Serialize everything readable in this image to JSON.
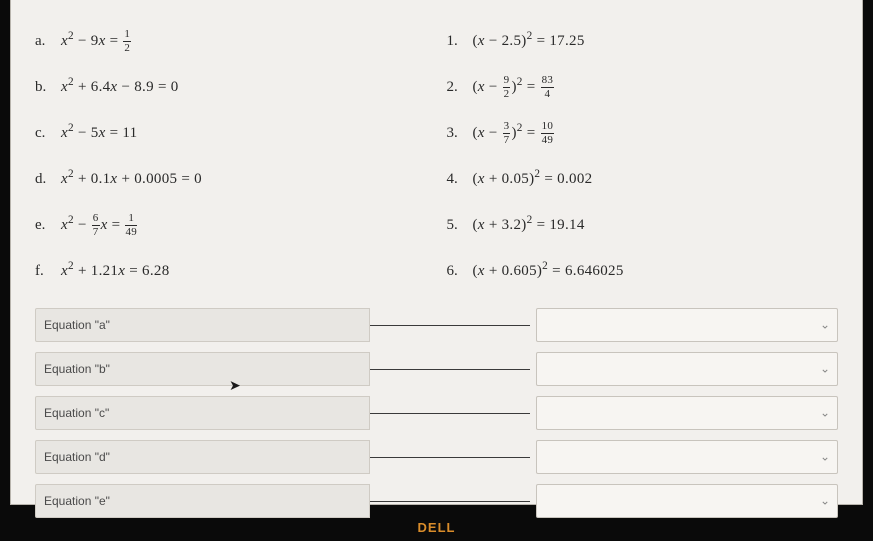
{
  "colors": {
    "page_bg": "#f2f0ed",
    "body_bg": "#0a0a0a",
    "text": "#2a2a2a",
    "label_bg": "#e8e6e2",
    "label_border": "#cfcbc4",
    "select_bg": "#f7f5f2",
    "select_border": "#c8c4bd",
    "underline": "#3a3a3a",
    "brand": "#d98c2a"
  },
  "fonts": {
    "math_family": "Georgia, Times New Roman, serif",
    "ui_family": "Arial, sans-serif",
    "math_size_pt": 11,
    "ui_size_pt": 9
  },
  "left_items": [
    {
      "label": "a.",
      "expr_html": "<i>x</i><sup>2</sup> − 9<i>x</i> = <span class='frac'><span class='n'>1</span><span class='d'>2</span></span>"
    },
    {
      "label": "b.",
      "expr_html": "<i>x</i><sup>2</sup> + 6.4<i>x</i> − 8.9 = 0"
    },
    {
      "label": "c.",
      "expr_html": "<i>x</i><sup>2</sup> − 5<i>x</i> = 11"
    },
    {
      "label": "d.",
      "expr_html": "<i>x</i><sup>2</sup> + 0.1<i>x</i> + 0.0005 = 0"
    },
    {
      "label": "e.",
      "expr_html": "<i>x</i><sup>2</sup> − <span class='frac'><span class='n'>6</span><span class='d'>7</span></span><i>x</i> = <span class='frac'><span class='n'>1</span><span class='d'>49</span></span>"
    },
    {
      "label": "f.",
      "expr_html": "<i>x</i><sup>2</sup> + 1.21<i>x</i> = 6.28"
    }
  ],
  "right_items": [
    {
      "label": "1.",
      "expr_html": "(<i>x</i> − 2.5)<sup>2</sup> = 17.25"
    },
    {
      "label": "2.",
      "expr_html": "(<i>x</i> − <span class='frac'><span class='n'>9</span><span class='d'>2</span></span>)<sup>2</sup> = <span class='frac'><span class='n'>83</span><span class='d'>4</span></span>"
    },
    {
      "label": "3.",
      "expr_html": "(<i>x</i> − <span class='frac'><span class='n'>3</span><span class='d'>7</span></span>)<sup>2</sup> = <span class='frac'><span class='n'>10</span><span class='d'>49</span></span>"
    },
    {
      "label": "4.",
      "expr_html": "(<i>x</i> + 0.05)<sup>2</sup> = 0.002"
    },
    {
      "label": "5.",
      "expr_html": "(<i>x</i> + 3.2)<sup>2</sup> = 19.14"
    },
    {
      "label": "6.",
      "expr_html": "(<i>x</i> + 0.605)<sup>2</sup> = 6.646025"
    }
  ],
  "answer_rows": [
    {
      "label": "Equation \"a\""
    },
    {
      "label": "Equation \"b\""
    },
    {
      "label": "Equation \"c\""
    },
    {
      "label": "Equation \"d\""
    },
    {
      "label": "Equation \"e\""
    }
  ],
  "select_placeholder": "",
  "brand_text": "DELL"
}
